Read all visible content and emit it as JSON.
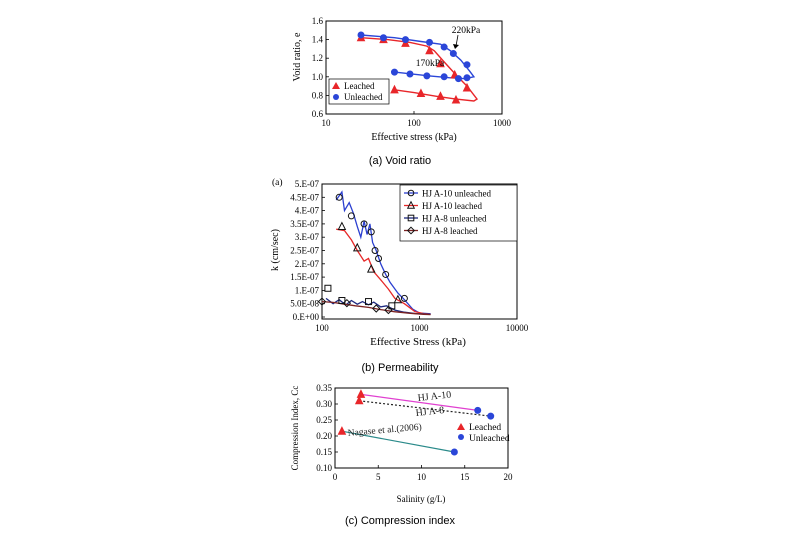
{
  "chart_data": [
    {
      "type": "scatter",
      "caption": "(a) Void ratio",
      "xlabel": "Effective stress (kPa)",
      "ylabel": "Void ratio, e",
      "xscale": "log",
      "xlim": [
        10,
        1000
      ],
      "ylim": [
        0.6,
        1.6
      ],
      "xticks": [
        "10",
        "100",
        "1000"
      ],
      "yticks": [
        "0.6",
        "0.8",
        "1.0",
        "1.2",
        "1.4",
        "1.6"
      ],
      "annotations": [
        "220kPa",
        "170kPa"
      ],
      "legend": {
        "placement": "bottom-left",
        "entries": [
          "Leached",
          "Unleached"
        ]
      },
      "colors": {
        "leached": "#e8262a",
        "unleached": "#2b46d8"
      },
      "series": [
        {
          "name": "Leached",
          "points": [
            [
              25,
              1.42
            ],
            [
              45,
              1.4
            ],
            [
              80,
              1.36
            ],
            [
              150,
              1.28
            ],
            [
              200,
              1.14
            ],
            [
              290,
              1.02
            ],
            [
              400,
              0.88
            ],
            [
              60,
              0.86
            ],
            [
              120,
              0.82
            ],
            [
              200,
              0.79
            ],
            [
              300,
              0.75
            ]
          ],
          "curve": [
            [
              25,
              1.42
            ],
            [
              50,
              1.4
            ],
            [
              90,
              1.37
            ],
            [
              140,
              1.33
            ],
            [
              170,
              1.28
            ],
            [
              220,
              1.16
            ],
            [
              300,
              1.02
            ],
            [
              400,
              0.9
            ],
            [
              520,
              0.76
            ],
            [
              480,
              0.74
            ],
            [
              300,
              0.76
            ],
            [
              180,
              0.79
            ],
            [
              100,
              0.83
            ],
            [
              60,
              0.86
            ]
          ]
        },
        {
          "name": "Unleached",
          "points": [
            [
              25,
              1.45
            ],
            [
              45,
              1.42
            ],
            [
              80,
              1.4
            ],
            [
              150,
              1.37
            ],
            [
              220,
              1.32
            ],
            [
              280,
              1.25
            ],
            [
              400,
              1.13
            ],
            [
              400,
              0.99
            ],
            [
              60,
              1.05
            ],
            [
              90,
              1.03
            ],
            [
              140,
              1.01
            ],
            [
              220,
              1.0
            ],
            [
              320,
              0.98
            ]
          ],
          "curve": [
            [
              25,
              1.45
            ],
            [
              60,
              1.42
            ],
            [
              120,
              1.38
            ],
            [
              200,
              1.35
            ],
            [
              260,
              1.28
            ],
            [
              340,
              1.18
            ],
            [
              430,
              1.06
            ],
            [
              480,
              1.0
            ],
            [
              380,
              0.98
            ],
            [
              250,
              0.99
            ],
            [
              150,
              1.01
            ],
            [
              60,
              1.05
            ]
          ]
        }
      ]
    },
    {
      "type": "line",
      "caption": "(b) Permeability",
      "panel_label": "(a)",
      "xlabel": "Effective Stress (kPa)",
      "ylabel": "k (cm/sec)",
      "xscale": "log",
      "xlim": [
        100,
        10000
      ],
      "ylim": [
        0,
        5e-07
      ],
      "xticks": [
        "100",
        "1000",
        "10000"
      ],
      "yticks": [
        "0.E+00",
        "5.0E-08",
        "1.E-07",
        "1.5E-07",
        "2.E-07",
        "2.5E-07",
        "3.E-07",
        "3.5E-07",
        "4.E-07",
        "4.5E-07",
        "5.E-07"
      ],
      "legend": {
        "placement": "top-right",
        "entries": [
          "HJ A-10 unleached",
          "HJ A-10 leached",
          "HJ A-8  unleached",
          "HJ A-8  leached"
        ]
      },
      "series": [
        {
          "name": "HJ A-10 unleached",
          "color": "#2b3fd0",
          "marker": "circle",
          "points": [
            [
              150,
              4.5e-07
            ],
            [
              200,
              3.8e-07
            ],
            [
              270,
              3.5e-07
            ],
            [
              320,
              3.2e-07
            ],
            [
              350,
              2.5e-07
            ],
            [
              380,
              2.2e-07
            ],
            [
              450,
              1.6e-07
            ],
            [
              700,
              7e-08
            ]
          ],
          "curve": [
            [
              140,
              4.4e-07
            ],
            [
              160,
              4.7e-07
            ],
            [
              170,
              4e-07
            ],
            [
              190,
              4.3e-07
            ],
            [
              210,
              3.9e-07
            ],
            [
              230,
              3.4e-07
            ],
            [
              250,
              3e-07
            ],
            [
              270,
              3.6e-07
            ],
            [
              290,
              3.1e-07
            ],
            [
              310,
              3.5e-07
            ],
            [
              330,
              2.8e-07
            ],
            [
              360,
              2.5e-07
            ],
            [
              400,
              2e-07
            ],
            [
              450,
              1.6e-07
            ],
            [
              500,
              1.3e-07
            ],
            [
              600,
              9e-08
            ],
            [
              700,
              6.5e-08
            ],
            [
              850,
              3e-08
            ],
            [
              1000,
              1.5e-08
            ],
            [
              1300,
              1.2e-08
            ]
          ]
        },
        {
          "name": "HJ A-10 leached",
          "color": "#e62828",
          "marker": "triangle",
          "points": [
            [
              160,
              3.4e-07
            ],
            [
              230,
              2.6e-07
            ],
            [
              320,
              1.8e-07
            ],
            [
              600,
              6.5e-08
            ]
          ],
          "curve": [
            [
              140,
              3.3e-07
            ],
            [
              170,
              3.25e-07
            ],
            [
              200,
              2.9e-07
            ],
            [
              230,
              2.5e-07
            ],
            [
              270,
              2.1e-07
            ],
            [
              300,
              2.2e-07
            ],
            [
              340,
              1.7e-07
            ],
            [
              400,
              1.4e-07
            ],
            [
              480,
              1.05e-07
            ],
            [
              560,
              7e-08
            ],
            [
              700,
              5e-08
            ],
            [
              900,
              2e-08
            ],
            [
              1100,
              1.3e-08
            ],
            [
              1300,
              1.1e-08
            ]
          ]
        },
        {
          "name": "HJ A-8  unleached",
          "color": "#1e2a80",
          "marker": "square",
          "points": [
            [
              115,
              1.08e-07
            ],
            [
              160,
              6.2e-08
            ],
            [
              300,
              5.8e-08
            ],
            [
              520,
              4.2e-08
            ]
          ],
          "curve": [
            [
              110,
              7e-08
            ],
            [
              130,
              5e-08
            ],
            [
              150,
              6.5e-08
            ],
            [
              175,
              4.5e-08
            ],
            [
              200,
              6.2e-08
            ],
            [
              230,
              4.8e-08
            ],
            [
              260,
              5.8e-08
            ],
            [
              300,
              4.6e-08
            ],
            [
              340,
              5.6e-08
            ],
            [
              400,
              3.8e-08
            ],
            [
              460,
              4.2e-08
            ],
            [
              560,
              2.6e-08
            ],
            [
              700,
              1.8e-08
            ],
            [
              900,
              1.3e-08
            ],
            [
              1300,
              1e-08
            ]
          ]
        },
        {
          "name": "HJ A-8  leached",
          "color": "#7a2222",
          "marker": "diamond",
          "points": [
            [
              100,
              5.8e-08
            ],
            [
              180,
              5.2e-08
            ],
            [
              360,
              3.2e-08
            ],
            [
              480,
              2.6e-08
            ]
          ],
          "curve": [
            [
              100,
              5.8e-08
            ],
            [
              130,
              5.5e-08
            ],
            [
              170,
              4.8e-08
            ],
            [
              220,
              4.2e-08
            ],
            [
              300,
              3.6e-08
            ],
            [
              400,
              2.8e-08
            ],
            [
              550,
              2e-08
            ],
            [
              800,
              1.4e-08
            ],
            [
              1100,
              1e-08
            ],
            [
              1300,
              9e-09
            ]
          ]
        }
      ]
    },
    {
      "type": "scatter",
      "caption": "(c) Compression index",
      "xlabel": "Salinity (g/L)",
      "ylabel": "Compression Index, Cc",
      "xlim": [
        0,
        20
      ],
      "ylim": [
        0.1,
        0.35
      ],
      "xticks": [
        "0",
        "5",
        "10",
        "15",
        "20"
      ],
      "yticks": [
        "0.10",
        "0.15",
        "0.20",
        "0.25",
        "0.30",
        "0.35"
      ],
      "legend": {
        "placement": "right",
        "entries": [
          "Leached",
          "Unleached"
        ]
      },
      "colors": {
        "leached": "#e8262a",
        "unleached": "#2b46d8"
      },
      "series": [
        {
          "name": "Leached",
          "points": [
            [
              3,
              0.33
            ],
            [
              2.8,
              0.31
            ],
            [
              0.8,
              0.215
            ]
          ]
        },
        {
          "name": "Unleached",
          "points": [
            [
              16.5,
              0.28
            ],
            [
              18,
              0.262
            ],
            [
              13.8,
              0.15
            ]
          ]
        }
      ],
      "lines": [
        {
          "name": "HJ A-10",
          "color": "#e040d0",
          "style": "solid",
          "points": [
            [
              3,
              0.33
            ],
            [
              16.5,
              0.28
            ]
          ]
        },
        {
          "name": "HJ A-8",
          "color": "#222222",
          "style": "dotted",
          "points": [
            [
              2.8,
              0.31
            ],
            [
              18,
              0.262
            ]
          ]
        },
        {
          "name": "Nagase et al.(2006)",
          "color": "#2a8a8a",
          "style": "solid",
          "points": [
            [
              0.8,
              0.215
            ],
            [
              13.8,
              0.15
            ]
          ]
        }
      ],
      "line_labels": [
        "HJ A-10",
        "HJ A-8",
        "Nagase et al.(2006)"
      ]
    }
  ]
}
